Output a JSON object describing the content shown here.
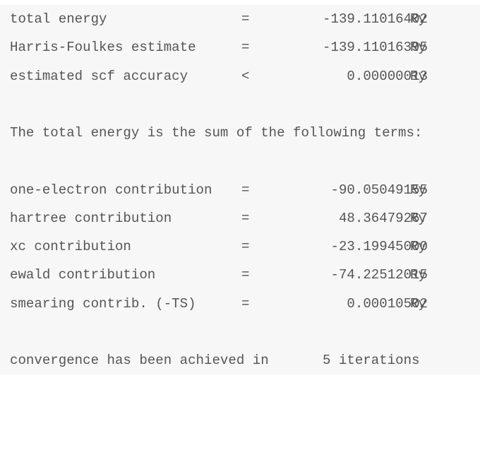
{
  "summary": [
    {
      "label": "total energy",
      "op": "=",
      "value": "-139.11016402",
      "unit": "Ry"
    },
    {
      "label": "Harris-Foulkes estimate",
      "op": "=",
      "value": "-139.11016395",
      "unit": "Ry"
    },
    {
      "label": "estimated scf accuracy",
      "op": "<",
      "value": "0.00000013",
      "unit": "Ry"
    }
  ],
  "terms_header": "The total energy is the sum of the following terms:",
  "terms": [
    {
      "label": "one-electron contribution",
      "op": "=",
      "value": "-90.05049155",
      "unit": "Ry"
    },
    {
      "label": "hartree contribution",
      "op": "=",
      "value": "48.36479267",
      "unit": "Ry"
    },
    {
      "label": "xc contribution",
      "op": "=",
      "value": "-23.19945000",
      "unit": "Ry"
    },
    {
      "label": "ewald contribution",
      "op": "=",
      "value": "-74.22512015",
      "unit": "Ry"
    },
    {
      "label": "smearing contrib. (-TS)",
      "op": "=",
      "value": "0.00010502",
      "unit": "Ry"
    }
  ],
  "convergence": {
    "text": "convergence has been achieved in",
    "count": "5 iterations"
  }
}
